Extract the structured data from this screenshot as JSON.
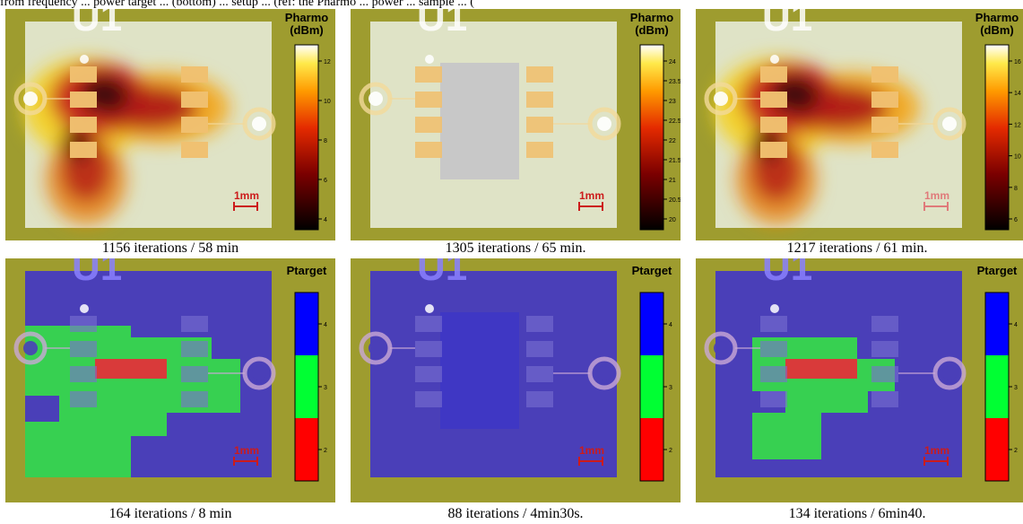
{
  "top_text": "from frequency ... power target ... (bottom) ... setup ... (ref: the Pharmo ... power ... sample ... (",
  "panels": [
    {
      "id": "p1",
      "colorbar_title": "Pharmo\n(dBm)",
      "colorbar_type": "hot",
      "ticks": [
        "12",
        "10",
        "8",
        "6",
        "4"
      ],
      "scale_label": "1mm",
      "caption": "1156 iterations / 58 min"
    },
    {
      "id": "p2",
      "colorbar_title": "Pharmo\n(dBm)",
      "colorbar_type": "hot",
      "ticks": [
        "24",
        "23.5",
        "23",
        "22.5",
        "22",
        "21.5",
        "21",
        "20.5",
        "20"
      ],
      "scale_label": "1mm",
      "caption": "1305 iterations / 65 min."
    },
    {
      "id": "p3",
      "colorbar_title": "Pharmo\n(dBm)",
      "colorbar_type": "hot",
      "ticks": [
        "16",
        "14",
        "12",
        "10",
        "8",
        "6"
      ],
      "scale_label": "1mm",
      "caption": "1217 iterations / 61 min."
    },
    {
      "id": "p4",
      "colorbar_title": "Ptarget",
      "colorbar_type": "discrete",
      "ticks": [
        "4",
        "3",
        "2"
      ],
      "scale_label": "1mm",
      "caption": "164 iterations / 8 min"
    },
    {
      "id": "p5",
      "colorbar_title": "Ptarget",
      "colorbar_type": "discrete",
      "ticks": [
        "4",
        "3",
        "2"
      ],
      "scale_label": "1mm",
      "caption": "88 iterations / 4min30s."
    },
    {
      "id": "p6",
      "colorbar_title": "Ptarget",
      "colorbar_type": "discrete",
      "ticks": [
        "4",
        "3",
        "2"
      ],
      "scale_label": "1mm",
      "caption": "134 iterations / 6min40."
    }
  ],
  "board_label": "U1",
  "colors": {
    "board": "#9e9c2f",
    "pale_overlay": "#dfe3c6",
    "blue_overlay": "#4a3fb8",
    "green_region": "#36d84b",
    "red_region": "#d93a3a",
    "pad": "#f0c070",
    "scale_color": "#cc1b1b"
  }
}
